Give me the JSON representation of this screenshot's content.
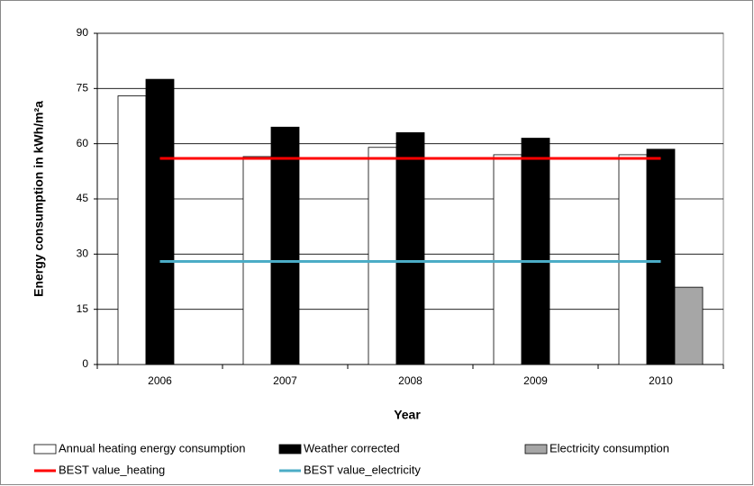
{
  "chart_data": {
    "type": "bar",
    "y_label": "Energy consumption in kWh/m²a",
    "x_label": "Year",
    "categories": [
      "2006",
      "2007",
      "2008",
      "2009",
      "2010"
    ],
    "series": [
      {
        "name": "Annual heating energy consumption",
        "color": "#ffffff",
        "type": "bar",
        "values": [
          73,
          56.5,
          59,
          57,
          57
        ]
      },
      {
        "name": "Weather corrected",
        "color": "#000000",
        "type": "bar",
        "values": [
          77.5,
          64.5,
          63,
          61.5,
          58.5
        ]
      },
      {
        "name": "Electricity consumption",
        "color": "#a6a6a6",
        "type": "bar",
        "values": [
          null,
          null,
          null,
          null,
          21
        ]
      },
      {
        "name": "BEST value_heating",
        "color": "#ff0000",
        "type": "line",
        "values": [
          56,
          56,
          56,
          56,
          56
        ]
      },
      {
        "name": "BEST value_electricity",
        "color": "#4bacc6",
        "type": "line",
        "values": [
          28,
          28,
          28,
          28,
          28
        ]
      }
    ],
    "ylim": [
      0,
      90
    ],
    "yticks": [
      0,
      15,
      30,
      45,
      60,
      75,
      90
    ],
    "grid": true
  }
}
